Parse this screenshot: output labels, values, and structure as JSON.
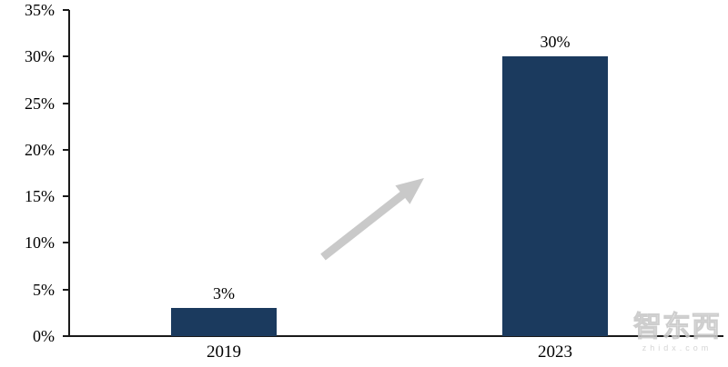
{
  "chart_data": {
    "type": "bar",
    "title": "",
    "xlabel": "",
    "ylabel": "",
    "categories": [
      "2019",
      "2023"
    ],
    "values": [
      3,
      30
    ],
    "data_labels": [
      "3%",
      "30%"
    ],
    "ytick_labels": [
      "0%",
      "5%",
      "10%",
      "15%",
      "20%",
      "25%",
      "30%",
      "35%"
    ],
    "ytick_values": [
      0,
      5,
      10,
      15,
      20,
      25,
      30,
      35
    ],
    "ylim": [
      0,
      35
    ],
    "grid": "off",
    "legend": "none",
    "bar_color": "#1b3a5e",
    "axis_color": "#1a1a1a",
    "annotations": [
      {
        "type": "arrow",
        "direction": "up-right",
        "color": "#c9c9c9"
      }
    ]
  },
  "watermark": {
    "title": "智东西",
    "subtitle": "zhidx.com"
  }
}
